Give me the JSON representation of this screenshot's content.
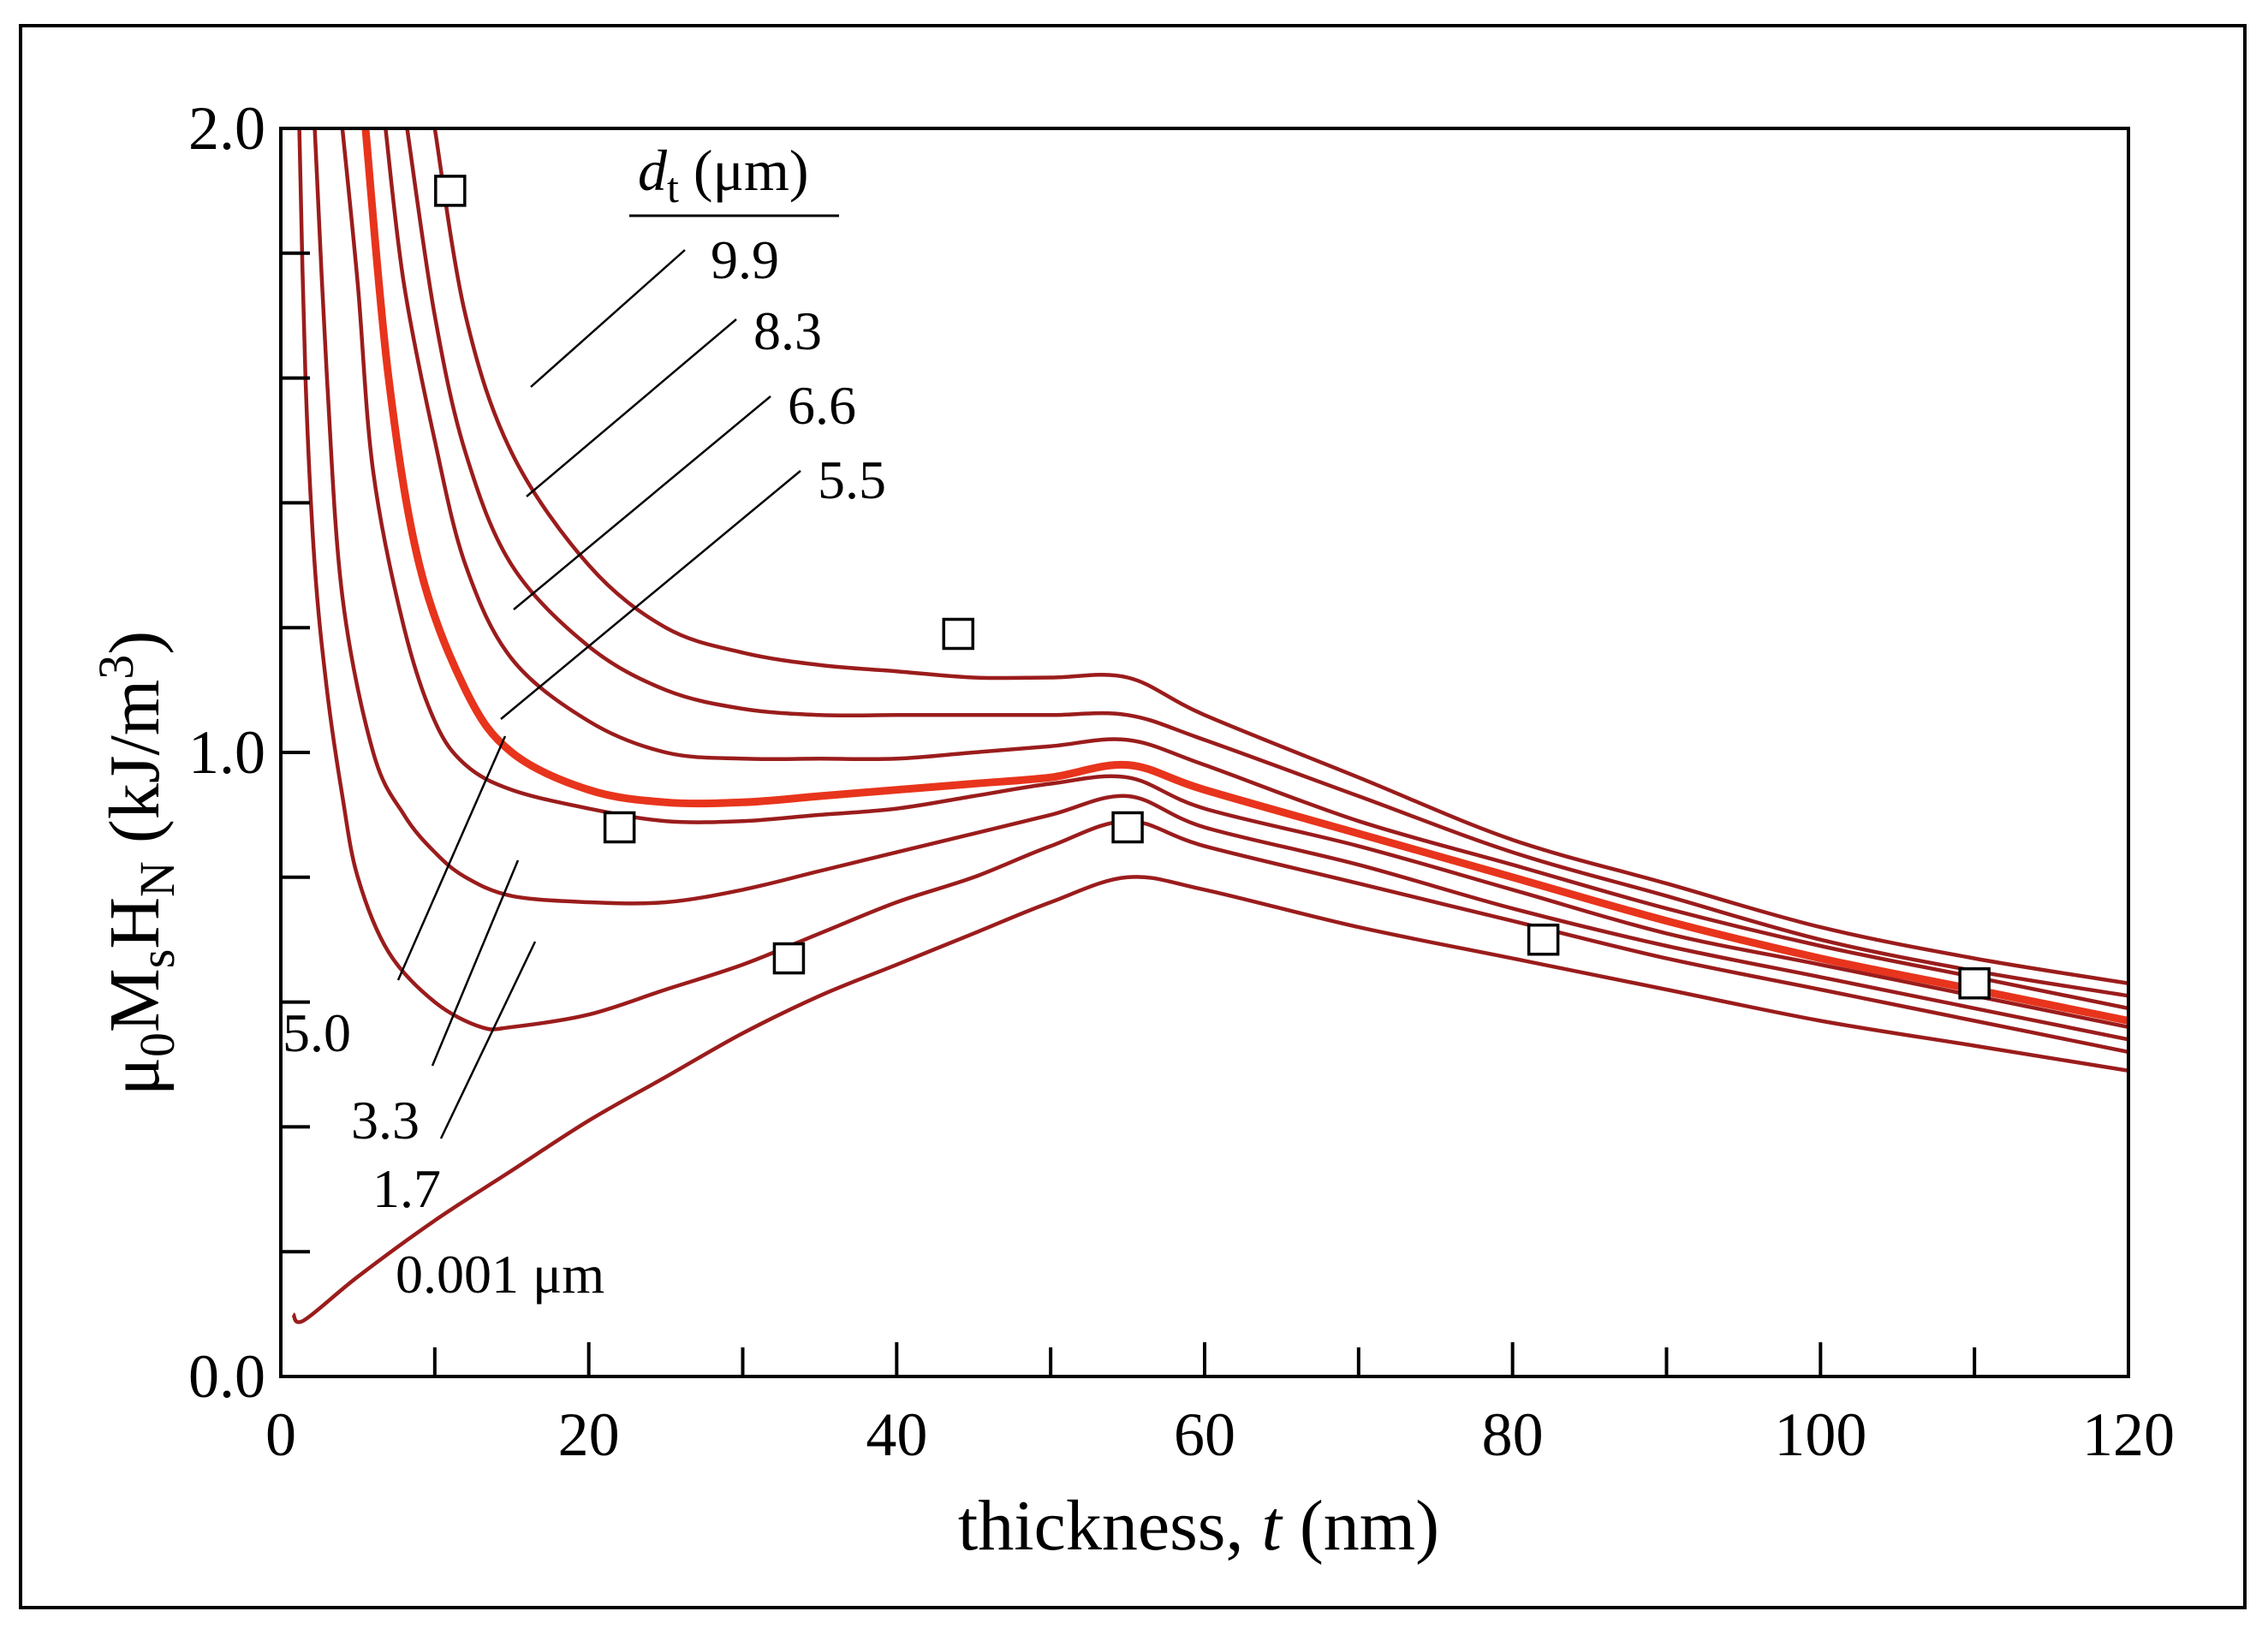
{
  "chart_data": {
    "type": "line",
    "xlabel_prefix": "thickness, ",
    "xlabel_var": "t",
    "xlabel_unit": " (nm)",
    "ylabel": "μ0MsHN (kJ/m3)",
    "ylabel_parts": {
      "mu": "μ",
      "mu_sub": "0",
      "M": "M",
      "M_sub": "s",
      "H": "H",
      "H_sub": "N",
      "unit": " (kJ/m",
      "unit_sup": "3",
      "unit_close": ")"
    },
    "xlim": [
      0,
      120
    ],
    "ylim": [
      0.0,
      2.0
    ],
    "x_tick_labels": [
      "0",
      "20",
      "40",
      "60",
      "80",
      "100",
      "120"
    ],
    "y_tick_labels": [
      "0.0",
      "1.0",
      "2.0"
    ],
    "legend_title_var": "d",
    "legend_title_sub": "t",
    "legend_title_unit": " (μm)",
    "series": [
      {
        "name": "9.9",
        "highlight": false,
        "points": [
          [
            10.0,
            2.0
          ],
          [
            12,
            1.7
          ],
          [
            15,
            1.48
          ],
          [
            20,
            1.3
          ],
          [
            25,
            1.2
          ],
          [
            30,
            1.16
          ],
          [
            35,
            1.14
          ],
          [
            40,
            1.13
          ],
          [
            45,
            1.12
          ],
          [
            50,
            1.12
          ],
          [
            55,
            1.12
          ],
          [
            60,
            1.06
          ],
          [
            70,
            0.96
          ],
          [
            80,
            0.86
          ],
          [
            90,
            0.79
          ],
          [
            100,
            0.72
          ],
          [
            110,
            0.67
          ],
          [
            120,
            0.63
          ]
        ]
      },
      {
        "name": "8.3",
        "highlight": false,
        "points": [
          [
            8.2,
            2.0
          ],
          [
            10,
            1.7
          ],
          [
            12,
            1.48
          ],
          [
            15,
            1.3
          ],
          [
            20,
            1.17
          ],
          [
            25,
            1.1
          ],
          [
            30,
            1.07
          ],
          [
            35,
            1.06
          ],
          [
            40,
            1.06
          ],
          [
            45,
            1.06
          ],
          [
            50,
            1.06
          ],
          [
            55,
            1.06
          ],
          [
            60,
            1.02
          ],
          [
            70,
            0.93
          ],
          [
            80,
            0.84
          ],
          [
            90,
            0.77
          ],
          [
            100,
            0.7
          ],
          [
            110,
            0.65
          ],
          [
            120,
            0.61
          ]
        ]
      },
      {
        "name": "6.6",
        "highlight": false,
        "points": [
          [
            6.8,
            2.0
          ],
          [
            8,
            1.75
          ],
          [
            10,
            1.5
          ],
          [
            12,
            1.3
          ],
          [
            15,
            1.15
          ],
          [
            20,
            1.05
          ],
          [
            25,
            1.0
          ],
          [
            30,
            0.99
          ],
          [
            35,
            0.99
          ],
          [
            40,
            0.99
          ],
          [
            45,
            1.0
          ],
          [
            50,
            1.01
          ],
          [
            55,
            1.02
          ],
          [
            60,
            0.98
          ],
          [
            70,
            0.89
          ],
          [
            80,
            0.82
          ],
          [
            90,
            0.75
          ],
          [
            100,
            0.69
          ],
          [
            110,
            0.64
          ],
          [
            120,
            0.59
          ]
        ]
      },
      {
        "name": "5.5",
        "highlight": true,
        "points": [
          [
            5.5,
            2.0
          ],
          [
            7,
            1.6
          ],
          [
            9,
            1.3
          ],
          [
            12,
            1.1
          ],
          [
            15,
            1.0
          ],
          [
            20,
            0.94
          ],
          [
            25,
            0.92
          ],
          [
            30,
            0.92
          ],
          [
            35,
            0.93
          ],
          [
            40,
            0.94
          ],
          [
            45,
            0.95
          ],
          [
            50,
            0.96
          ],
          [
            55,
            0.98
          ],
          [
            60,
            0.94
          ],
          [
            70,
            0.87
          ],
          [
            80,
            0.8
          ],
          [
            90,
            0.73
          ],
          [
            100,
            0.67
          ],
          [
            110,
            0.62
          ],
          [
            120,
            0.57
          ]
        ]
      },
      {
        "name": "5.0",
        "highlight": false,
        "points": [
          [
            4.0,
            2.0
          ],
          [
            5,
            1.75
          ],
          [
            6,
            1.45
          ],
          [
            8,
            1.2
          ],
          [
            10,
            1.05
          ],
          [
            12,
            0.98
          ],
          [
            15,
            0.94
          ],
          [
            20,
            0.91
          ],
          [
            25,
            0.89
          ],
          [
            30,
            0.89
          ],
          [
            35,
            0.9
          ],
          [
            40,
            0.91
          ],
          [
            45,
            0.93
          ],
          [
            50,
            0.95
          ],
          [
            55,
            0.96
          ],
          [
            60,
            0.91
          ],
          [
            70,
            0.85
          ],
          [
            80,
            0.78
          ],
          [
            90,
            0.71
          ],
          [
            100,
            0.66
          ],
          [
            110,
            0.61
          ],
          [
            120,
            0.56
          ]
        ]
      },
      {
        "name": "3.3",
        "highlight": false,
        "points": [
          [
            2.2,
            2.0
          ],
          [
            3,
            1.6
          ],
          [
            4,
            1.25
          ],
          [
            6,
            1.0
          ],
          [
            8,
            0.9
          ],
          [
            10,
            0.84
          ],
          [
            12,
            0.8
          ],
          [
            15,
            0.77
          ],
          [
            20,
            0.76
          ],
          [
            25,
            0.76
          ],
          [
            30,
            0.78
          ],
          [
            35,
            0.81
          ],
          [
            40,
            0.84
          ],
          [
            45,
            0.87
          ],
          [
            50,
            0.9
          ],
          [
            55,
            0.93
          ],
          [
            60,
            0.88
          ],
          [
            70,
            0.82
          ],
          [
            80,
            0.75
          ],
          [
            90,
            0.69
          ],
          [
            100,
            0.64
          ],
          [
            110,
            0.59
          ],
          [
            120,
            0.54
          ]
        ]
      },
      {
        "name": "1.7",
        "highlight": false,
        "points": [
          [
            1.2,
            2.0
          ],
          [
            1.6,
            1.6
          ],
          [
            2.2,
            1.3
          ],
          [
            3,
            1.1
          ],
          [
            4,
            0.93
          ],
          [
            5,
            0.8
          ],
          [
            7,
            0.68
          ],
          [
            10,
            0.6
          ],
          [
            13,
            0.56
          ],
          [
            15,
            0.56
          ],
          [
            20,
            0.58
          ],
          [
            25,
            0.62
          ],
          [
            30,
            0.66
          ],
          [
            35,
            0.71
          ],
          [
            40,
            0.76
          ],
          [
            45,
            0.8
          ],
          [
            50,
            0.85
          ],
          [
            55,
            0.89
          ],
          [
            60,
            0.85
          ],
          [
            70,
            0.79
          ],
          [
            80,
            0.73
          ],
          [
            90,
            0.67
          ],
          [
            100,
            0.62
          ],
          [
            110,
            0.57
          ],
          [
            120,
            0.52
          ]
        ]
      },
      {
        "name": "0.001 μm",
        "highlight": false,
        "points": [
          [
            0.8,
            0.1
          ],
          [
            1.5,
            0.09
          ],
          [
            5,
            0.16
          ],
          [
            10,
            0.25
          ],
          [
            15,
            0.33
          ],
          [
            20,
            0.41
          ],
          [
            25,
            0.48
          ],
          [
            30,
            0.55
          ],
          [
            35,
            0.61
          ],
          [
            40,
            0.66
          ],
          [
            45,
            0.71
          ],
          [
            50,
            0.76
          ],
          [
            55,
            0.8
          ],
          [
            60,
            0.78
          ],
          [
            70,
            0.72
          ],
          [
            80,
            0.67
          ],
          [
            90,
            0.62
          ],
          [
            100,
            0.57
          ],
          [
            110,
            0.53
          ],
          [
            120,
            0.49
          ]
        ]
      }
    ],
    "markers": {
      "shape": "open-square",
      "points": [
        [
          11,
          1.9
        ],
        [
          22,
          0.88
        ],
        [
          33,
          0.67
        ],
        [
          44,
          1.19
        ],
        [
          55,
          0.88
        ],
        [
          82,
          0.7
        ],
        [
          110,
          0.63
        ]
      ]
    },
    "curve_colour": "#9b1c1c",
    "highlight_colour": "#e8341c"
  }
}
